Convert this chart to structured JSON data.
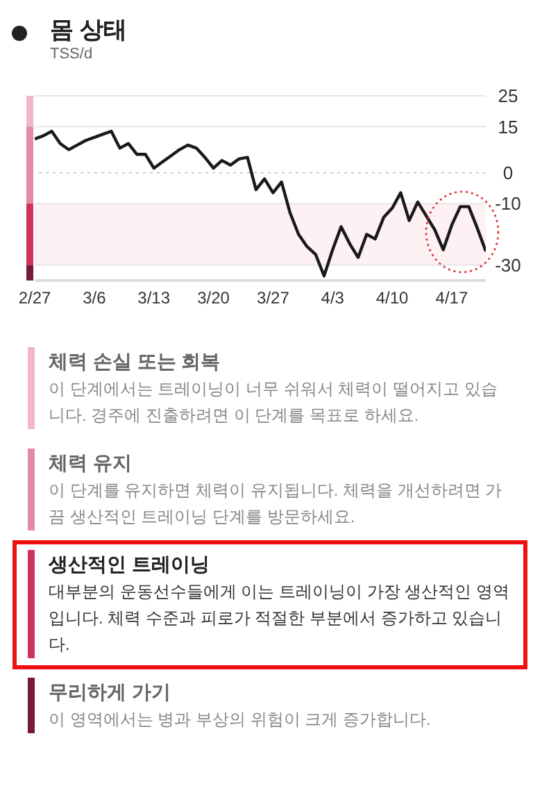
{
  "chart_data": {
    "type": "line",
    "title": "몸 상태",
    "subtitle": "TSS/d",
    "x": [
      "--02-27",
      "--02-28",
      "--03-01",
      "--03-02",
      "--03-03",
      "--03-04",
      "--03-05",
      "--03-06",
      "--03-07",
      "--03-08",
      "--03-09",
      "--03-10",
      "--03-11",
      "--03-12",
      "--03-13",
      "--03-14",
      "--03-15",
      "--03-16",
      "--03-17",
      "--03-18",
      "--03-19",
      "--03-20",
      "--03-21",
      "--03-22",
      "--03-23",
      "--03-24",
      "--03-25",
      "--03-26",
      "--03-27",
      "--03-28",
      "--03-29",
      "--03-30",
      "--03-31",
      "--04-01",
      "--04-02",
      "--04-03",
      "--04-04",
      "--04-05",
      "--04-06",
      "--04-07",
      "--04-08",
      "--04-09",
      "--04-10",
      "--04-11",
      "--04-12",
      "--04-13",
      "--04-14",
      "--04-15",
      "--04-16",
      "--04-17",
      "--04-18",
      "--04-19",
      "--04-20",
      "--04-21"
    ],
    "series": [
      {
        "color": "#1a1a1a",
        "values": [
          11,
          12,
          13.5,
          9.5,
          7.5,
          9,
          10.5,
          11.5,
          12.5,
          13.5,
          8,
          9.5,
          6,
          6,
          1.5,
          3.5,
          5.5,
          7.5,
          9,
          8,
          5,
          1.5,
          4,
          2.5,
          4.5,
          5,
          -5.5,
          -2,
          -6.5,
          -3,
          -13,
          -20,
          -24,
          -26.5,
          -33.5,
          -25,
          -17.5,
          -23,
          -27.5,
          -20,
          -21.5,
          -14.5,
          -11.5,
          -6.5,
          -15.5,
          -9.5,
          -14,
          -18.5,
          -25,
          -17,
          -11,
          -11,
          -18,
          -25.5
        ]
      }
    ],
    "xlim": [
      "--02-27",
      "--04-21"
    ],
    "xticks": [
      {
        "value": "--02-27",
        "label": "2/27"
      },
      {
        "value": "--03-06",
        "label": "3/6"
      },
      {
        "value": "--03-13",
        "label": "3/13"
      },
      {
        "value": "--03-20",
        "label": "3/20"
      },
      {
        "value": "--03-27",
        "label": "3/27"
      },
      {
        "value": "--04-03",
        "label": "4/3"
      },
      {
        "value": "--04-10",
        "label": "4/10"
      },
      {
        "value": "--04-17",
        "label": "4/17"
      }
    ],
    "ylim": [
      -35,
      25
    ],
    "yticks": [
      25,
      15,
      0,
      -10,
      -30
    ],
    "grid": "y",
    "marker": "none",
    "line_style": "solid",
    "ref_lines": [
      {
        "axis": "y",
        "value": 0,
        "color": "#cccccc",
        "line_style": "dotted"
      }
    ],
    "bands": [
      {
        "axis": "y",
        "from": -10,
        "to": -30,
        "color": "#fdf1f4"
      }
    ],
    "annotations": [
      "체력 손실 또는 회복",
      "이 단계에서는 트레이닝이 너무 쉬워서 체력이 떨어지고 있습니다. 경주에 진출하려면 이 단계를 목표로 하세요.",
      "체력 유지",
      "이 단계를 유지하면 체력이 유지됩니다. 체력을 개선하려면 가끔 생산적인 트레이닝 단계를 방문하세요.",
      "생산적인 트레이닝",
      "대부분의 운동선수들에게 이는 트레이닝이 가장 생산적인 영역입니다. 체력 수준과 피로가 적절한 부분에서 증가하고 있습니다.",
      "무리하게 가기",
      "이 영역에서는 병과 부상의 위험이 크게 증가합니다."
    ]
  }
}
